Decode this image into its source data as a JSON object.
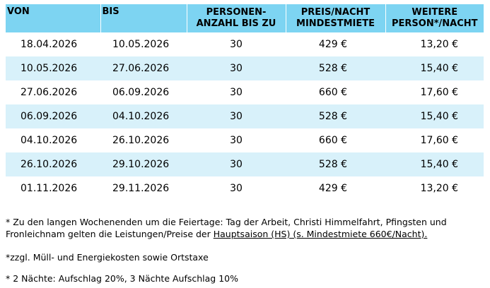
{
  "table": {
    "headers": {
      "von": "VON",
      "bis": "BIS",
      "personen_line1": "PERSONEN-",
      "personen_line2": "ANZAHL BIS ZU",
      "preis_line1": "PREIS/NACHT",
      "preis_line2": "MINDESTMIETE",
      "weitere_line1": "WEITERE",
      "weitere_line2": "PERSON*/NACHT"
    },
    "rows": [
      {
        "von": "18.04.2026",
        "bis": "10.05.2026",
        "personen": "30",
        "preis": "429 €",
        "weitere": "13,20 €"
      },
      {
        "von": "10.05.2026",
        "bis": "27.06.2026",
        "personen": "30",
        "preis": "528 €",
        "weitere": "15,40 €"
      },
      {
        "von": "27.06.2026",
        "bis": "06.09.2026",
        "personen": "30",
        "preis": "660 €",
        "weitere": "17,60 €"
      },
      {
        "von": "06.09.2026",
        "bis": "04.10.2026",
        "personen": "30",
        "preis": "528 €",
        "weitere": "15,40 €"
      },
      {
        "von": "04.10.2026",
        "bis": "26.10.2026",
        "personen": "30",
        "preis": "660 €",
        "weitere": "17,60 €"
      },
      {
        "von": "26.10.2026",
        "bis": "29.10.2026",
        "personen": "30",
        "preis": "528 €",
        "weitere": "15,40 €"
      },
      {
        "von": "01.11.2026",
        "bis": "29.11.2026",
        "personen": "30",
        "preis": "429 €",
        "weitere": "13,20 €"
      }
    ]
  },
  "notes": {
    "note1_text": "* Zu den langen Wochenenden um die Feiertage: Tag der Arbeit, Christi Himmelfahrt, Pfingsten und Fronleichnam gelten die Leistungen/Preise der ",
    "note1_link": "Hauptsaison (HS) (s. Mindestmiete 660€/Nacht).",
    "note2": "*zzgl. Müll- und Energiekosten sowie Ortstaxe",
    "note3": "* 2 Nächte: Aufschlag 20%, 3 Nächte Aufschlag 10%"
  },
  "colors": {
    "header_bg": "#7dd4f2",
    "row_shade": "#d8f1fa"
  }
}
